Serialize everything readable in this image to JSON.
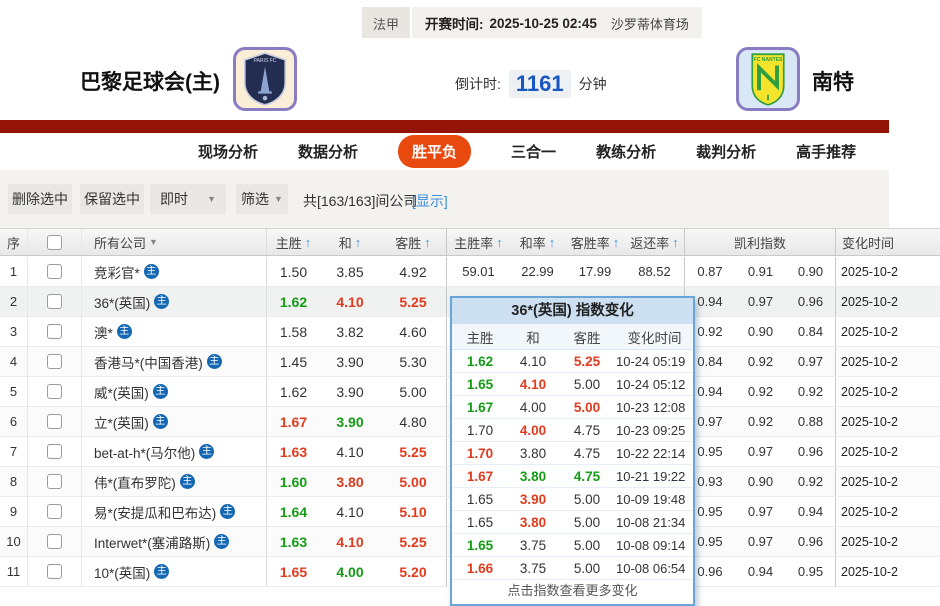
{
  "top_bar": {
    "league": "法甲",
    "kickoff_label": "开赛时间:",
    "kickoff_time": "2025-10-25 02:45",
    "venue": "沙罗蒂体育场"
  },
  "match_header": {
    "home_team": "巴黎足球会(主)",
    "away_team": "南特",
    "home_logo_text": "PARIS FC",
    "away_logo_text": "FC NANTES",
    "countdown_label": "倒计时:",
    "countdown_value": "1161",
    "countdown_unit": "分钟"
  },
  "nav": {
    "tabs": [
      {
        "label": "现场分析",
        "active": false
      },
      {
        "label": "数据分析",
        "active": false
      },
      {
        "label": "胜平负",
        "active": true
      },
      {
        "label": "三合一",
        "active": false
      },
      {
        "label": "教练分析",
        "active": false
      },
      {
        "label": "裁判分析",
        "active": false
      },
      {
        "label": "高手推荐",
        "active": false
      }
    ]
  },
  "filter_bar": {
    "delete_button": "删除选中",
    "keep_button": "保留选中",
    "time_select_value": "即时",
    "filter_select_label": "筛选",
    "company_count_text": "共[163/163]间公司",
    "show_link": "[显示]"
  },
  "table": {
    "company_badge": "主",
    "headers": {
      "index": "序",
      "company": "所有公司",
      "home": "主胜",
      "draw": "和",
      "away": "客胜",
      "home_rate": "主胜率",
      "draw_rate": "和率",
      "away_rate": "客胜率",
      "return_rate": "返还率",
      "kelly": "凯利指数",
      "change_time": "变化时间"
    },
    "rows": [
      {
        "index": "1",
        "company": "竞彩官*",
        "odds": [
          [
            "1.50",
            "k"
          ],
          [
            "3.85",
            "k"
          ],
          [
            "4.92",
            "k"
          ]
        ],
        "rates": [
          "59.01",
          "22.99",
          "17.99",
          "88.52"
        ],
        "kelly": [
          "0.87",
          "0.91",
          "0.90"
        ],
        "time": "2025-10-2",
        "highlight": false
      },
      {
        "index": "2",
        "company": "36*(英国)",
        "odds": [
          [
            "1.62",
            "g"
          ],
          [
            "4.10",
            "r"
          ],
          [
            "5.25",
            "r"
          ]
        ],
        "rates": [
          "",
          "",
          "",
          ""
        ],
        "kelly": [
          "0.94",
          "0.97",
          "0.96"
        ],
        "time": "2025-10-2",
        "highlight": true
      },
      {
        "index": "3",
        "company": "澳*",
        "odds": [
          [
            "1.58",
            "k"
          ],
          [
            "3.82",
            "k"
          ],
          [
            "4.60",
            "k"
          ]
        ],
        "rates": [
          "",
          "",
          "",
          ""
        ],
        "kelly": [
          "0.92",
          "0.90",
          "0.84"
        ],
        "time": "2025-10-2",
        "highlight": false
      },
      {
        "index": "4",
        "company": "香港马*(中国香港)",
        "odds": [
          [
            "1.45",
            "k"
          ],
          [
            "3.90",
            "k"
          ],
          [
            "5.30",
            "k"
          ]
        ],
        "rates": [
          "",
          "",
          "",
          ""
        ],
        "kelly": [
          "0.84",
          "0.92",
          "0.97"
        ],
        "time": "2025-10-2",
        "highlight": false
      },
      {
        "index": "5",
        "company": "威*(英国)",
        "odds": [
          [
            "1.62",
            "k"
          ],
          [
            "3.90",
            "k"
          ],
          [
            "5.00",
            "k"
          ]
        ],
        "rates": [
          "",
          "",
          "",
          ""
        ],
        "kelly": [
          "0.94",
          "0.92",
          "0.92"
        ],
        "time": "2025-10-2",
        "highlight": false
      },
      {
        "index": "6",
        "company": "立*(英国)",
        "odds": [
          [
            "1.67",
            "r"
          ],
          [
            "3.90",
            "g"
          ],
          [
            "4.80",
            "k"
          ]
        ],
        "rates": [
          "",
          "",
          "",
          ""
        ],
        "kelly": [
          "0.97",
          "0.92",
          "0.88"
        ],
        "time": "2025-10-2",
        "highlight": false
      },
      {
        "index": "7",
        "company": "bet-at-h*(马尔他)",
        "odds": [
          [
            "1.63",
            "r"
          ],
          [
            "4.10",
            "k"
          ],
          [
            "5.25",
            "r"
          ]
        ],
        "rates": [
          "",
          "",
          "",
          ""
        ],
        "kelly": [
          "0.95",
          "0.97",
          "0.96"
        ],
        "time": "2025-10-2",
        "highlight": false
      },
      {
        "index": "8",
        "company": "伟*(直布罗陀)",
        "odds": [
          [
            "1.60",
            "g"
          ],
          [
            "3.80",
            "r"
          ],
          [
            "5.00",
            "r"
          ]
        ],
        "rates": [
          "",
          "",
          "",
          ""
        ],
        "kelly": [
          "0.93",
          "0.90",
          "0.92"
        ],
        "time": "2025-10-2",
        "highlight": false
      },
      {
        "index": "9",
        "company": "易*(安提瓜和巴布达)",
        "odds": [
          [
            "1.64",
            "g"
          ],
          [
            "4.10",
            "k"
          ],
          [
            "5.10",
            "r"
          ]
        ],
        "rates": [
          "",
          "",
          "",
          ""
        ],
        "kelly": [
          "0.95",
          "0.97",
          "0.94"
        ],
        "time": "2025-10-2",
        "highlight": false
      },
      {
        "index": "10",
        "company": "Interwet*(塞浦路斯)",
        "odds": [
          [
            "1.63",
            "g"
          ],
          [
            "4.10",
            "r"
          ],
          [
            "5.25",
            "r"
          ]
        ],
        "rates": [
          "",
          "",
          "",
          ""
        ],
        "kelly": [
          "0.95",
          "0.97",
          "0.96"
        ],
        "time": "2025-10-2",
        "highlight": false
      },
      {
        "index": "11",
        "company": "10*(英国)",
        "odds": [
          [
            "1.65",
            "r"
          ],
          [
            "4.00",
            "g"
          ],
          [
            "5.20",
            "r"
          ]
        ],
        "rates": [
          "",
          "",
          "",
          ""
        ],
        "kelly": [
          "0.96",
          "0.94",
          "0.95"
        ],
        "time": "2025-10-2",
        "highlight": false
      }
    ]
  },
  "popup": {
    "title": "36*(英国) 指数变化",
    "headers": [
      "主胜",
      "和",
      "客胜",
      "变化时间"
    ],
    "rows": [
      [
        [
          "1.62",
          "g"
        ],
        [
          "4.10",
          "k"
        ],
        [
          "5.25",
          "r"
        ],
        "10-24 05:19"
      ],
      [
        [
          "1.65",
          "g"
        ],
        [
          "4.10",
          "r"
        ],
        [
          "5.00",
          "k"
        ],
        "10-24 05:12"
      ],
      [
        [
          "1.67",
          "g"
        ],
        [
          "4.00",
          "k"
        ],
        [
          "5.00",
          "r"
        ],
        "10-23 12:08"
      ],
      [
        [
          "1.70",
          "k"
        ],
        [
          "4.00",
          "r"
        ],
        [
          "4.75",
          "k"
        ],
        "10-23 09:25"
      ],
      [
        [
          "1.70",
          "r"
        ],
        [
          "3.80",
          "k"
        ],
        [
          "4.75",
          "k"
        ],
        "10-22 22:14"
      ],
      [
        [
          "1.67",
          "r"
        ],
        [
          "3.80",
          "g"
        ],
        [
          "4.75",
          "g"
        ],
        "10-21 19:22"
      ],
      [
        [
          "1.65",
          "k"
        ],
        [
          "3.90",
          "r"
        ],
        [
          "5.00",
          "k"
        ],
        "10-09 19:48"
      ],
      [
        [
          "1.65",
          "k"
        ],
        [
          "3.80",
          "r"
        ],
        [
          "5.00",
          "k"
        ],
        "10-08 21:34"
      ],
      [
        [
          "1.65",
          "g"
        ],
        [
          "3.75",
          "k"
        ],
        [
          "5.00",
          "k"
        ],
        "10-08 09:14"
      ],
      [
        [
          "1.66",
          "r"
        ],
        [
          "3.75",
          "k"
        ],
        [
          "5.00",
          "k"
        ],
        "10-08 06:54"
      ]
    ],
    "footer": "点击指数查看更多变化"
  },
  "colors": {
    "odds_up_red": "#e23a1d",
    "odds_down_green": "#149c14",
    "active_tab_orange": "#e8490f",
    "nav_bar_red": "#931407",
    "countdown_blue": "#1857c2",
    "link_blue": "#3c8ddc",
    "badge_blue": "#1467b3",
    "popup_border_blue": "#6aa5d9",
    "popup_header_blue": "#cde0f2"
  }
}
